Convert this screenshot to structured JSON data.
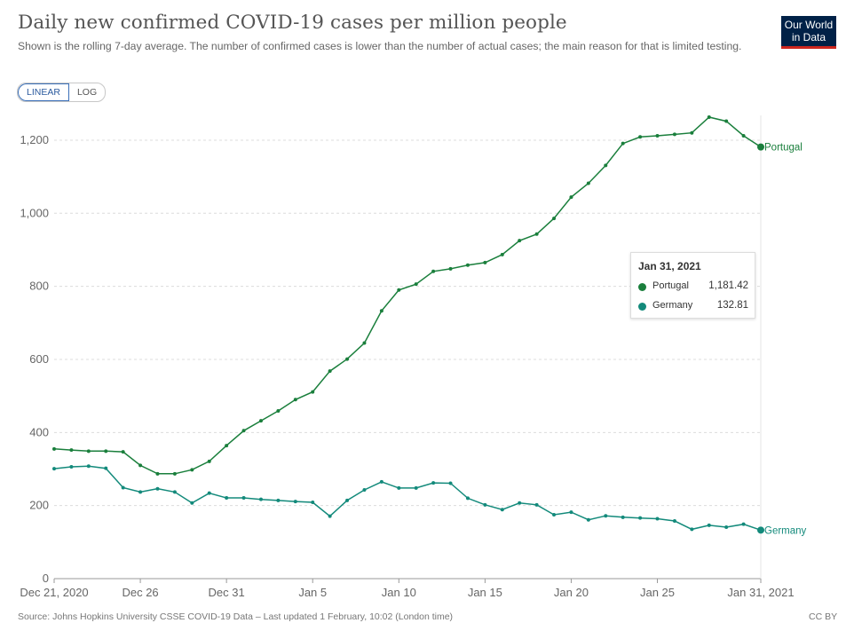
{
  "header": {
    "title": "Daily new confirmed COVID-19 cases per million people",
    "subtitle": "Shown is the rolling 7-day average. The number of confirmed cases is lower than the number of actual cases; the main reason for that is limited testing.",
    "logo_line1": "Our World",
    "logo_line2": "in Data"
  },
  "scale_toggle": {
    "linear": "LINEAR",
    "log": "LOG",
    "active": "LINEAR"
  },
  "footer": {
    "source": "Source: Johns Hopkins University CSSE COVID-19 Data – Last updated 1 February, 10:02 (London time)",
    "license": "CC BY"
  },
  "tooltip": {
    "date": "Jan 31, 2021",
    "rows": [
      {
        "name": "Portugal",
        "value": "1,181.42"
      },
      {
        "name": "Germany",
        "value": "132.81"
      }
    ]
  },
  "colors": {
    "portugal": "#1a7f3c",
    "germany": "#138a7b"
  },
  "chart_data": {
    "type": "line",
    "title": "Daily new confirmed COVID-19 cases per million people",
    "x_start": "2020-12-21",
    "x_end": "2021-01-31",
    "x_ticks": [
      "Dec 21, 2020",
      "Dec 26",
      "Dec 31",
      "Jan 5",
      "Jan 10",
      "Jan 15",
      "Jan 20",
      "Jan 25",
      "Jan 31, 2021"
    ],
    "y_ticks": [
      "0",
      "200",
      "400",
      "600",
      "800",
      "1,000",
      "1,200"
    ],
    "ylim": [
      0,
      1250
    ],
    "grid": true,
    "series": [
      {
        "name": "Portugal",
        "color": "#1a7f3c",
        "values": [
          355,
          352,
          349,
          349,
          347,
          310,
          287,
          287,
          298,
          321,
          364,
          405,
          432,
          459,
          490,
          511,
          568,
          601,
          645,
          733,
          790,
          806,
          841,
          848,
          858,
          865,
          887,
          925,
          943,
          986,
          1044,
          1082,
          1131,
          1191,
          1209,
          1212,
          1216,
          1220,
          1263,
          1252,
          1212,
          1181.42
        ]
      },
      {
        "name": "Germany",
        "color": "#138a7b",
        "values": [
          301,
          306,
          308,
          302,
          249,
          237,
          246,
          237,
          207,
          234,
          221,
          221,
          217,
          214,
          211,
          209,
          171,
          214,
          243,
          265,
          248,
          248,
          262,
          261,
          220,
          202,
          189,
          207,
          202,
          175,
          182,
          161,
          172,
          168,
          166,
          164,
          158,
          135,
          146,
          141,
          149,
          132.81
        ]
      }
    ]
  }
}
